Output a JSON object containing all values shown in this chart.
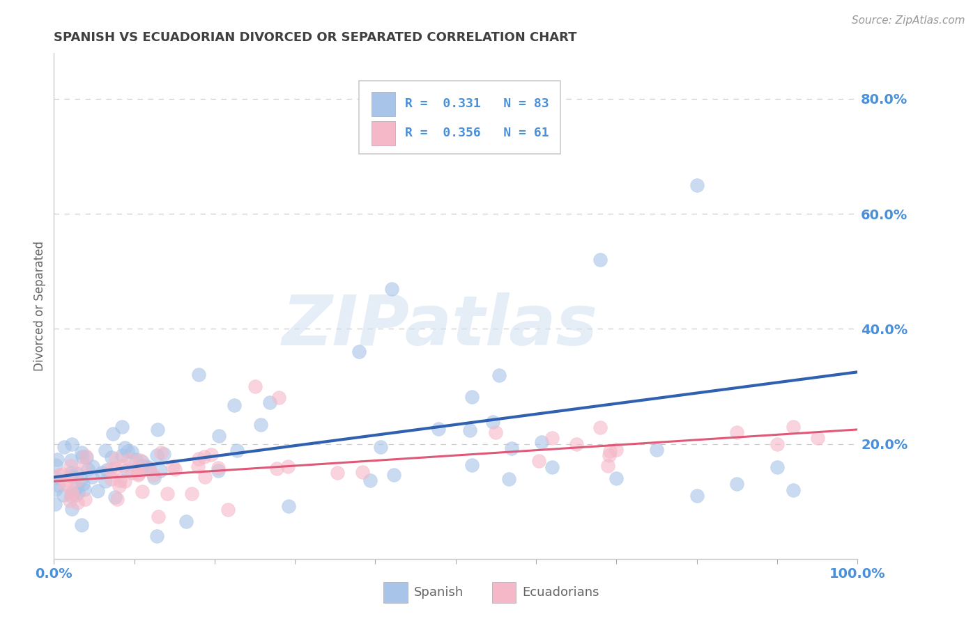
{
  "title": "SPANISH VS ECUADORIAN DIVORCED OR SEPARATED CORRELATION CHART",
  "source": "Source: ZipAtlas.com",
  "ylabel": "Divorced or Separated",
  "xlim": [
    0.0,
    1.0
  ],
  "ylim": [
    0.0,
    0.88
  ],
  "x_ticks": [
    0.0,
    0.1,
    0.2,
    0.3,
    0.4,
    0.5,
    0.6,
    0.7,
    0.8,
    0.9,
    1.0
  ],
  "x_tick_labels": [
    "0.0%",
    "",
    "",
    "",
    "",
    "",
    "",
    "",
    "",
    "",
    "100.0%"
  ],
  "y_ticks": [
    0.0,
    0.2,
    0.4,
    0.6,
    0.8
  ],
  "y_tick_labels": [
    "",
    "20.0%",
    "40.0%",
    "60.0%",
    "80.0%"
  ],
  "legend_spanish_label": "Spanish",
  "legend_ecuadorian_label": "Ecuadorians",
  "spanish_R": "0.331",
  "spanish_N": "83",
  "ecuadorian_R": "0.356",
  "ecuadorian_N": "61",
  "spanish_color": "#a8c4e8",
  "ecuadorian_color": "#f5b8c8",
  "spanish_line_color": "#3060b0",
  "ecuadorian_line_color": "#e05878",
  "background_color": "#ffffff",
  "grid_color": "#cccccc",
  "title_color": "#404040",
  "axis_label_color": "#666666",
  "tick_label_color": "#4a90d9",
  "legend_text_color": "#4a90d9",
  "watermark_color": "#d0dff0",
  "watermark_text": "ZIPatlas",
  "sp_trend_x0": 0.0,
  "sp_trend_y0": 0.142,
  "sp_trend_x1": 1.0,
  "sp_trend_y1": 0.325,
  "ec_trend_x0": 0.0,
  "ec_trend_y0": 0.135,
  "ec_trend_x1": 1.0,
  "ec_trend_y1": 0.225
}
